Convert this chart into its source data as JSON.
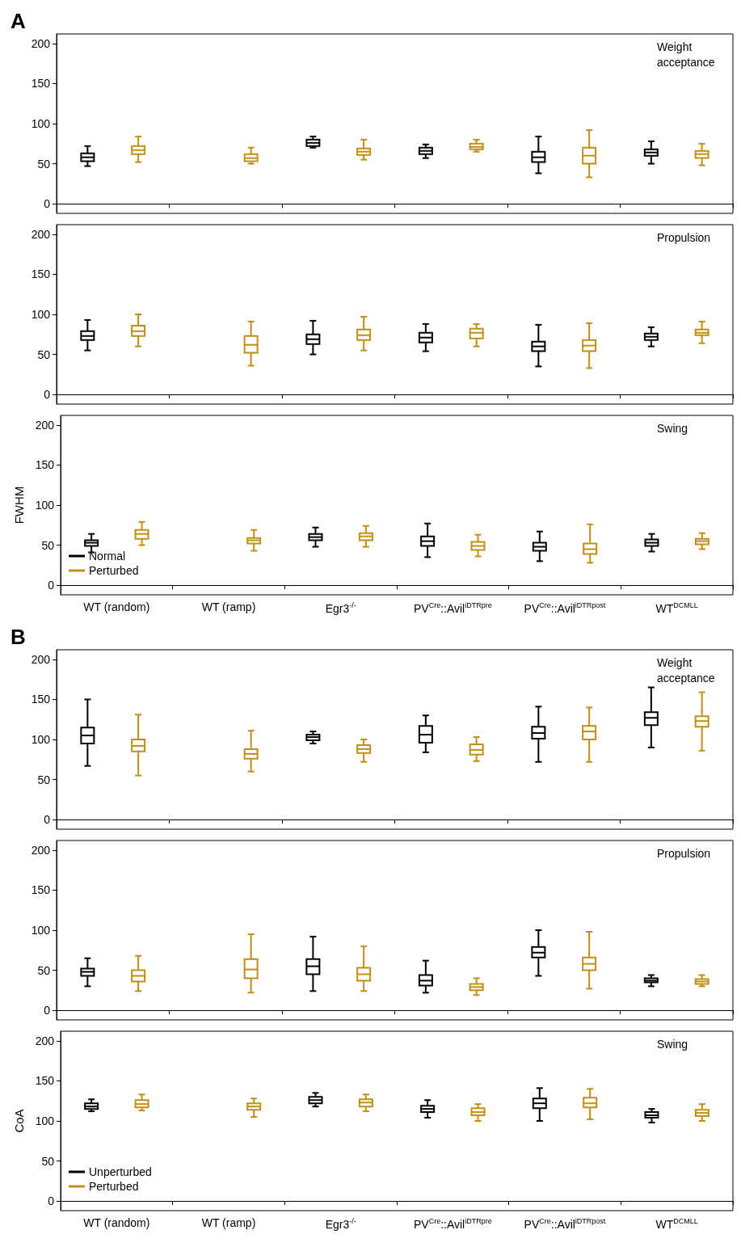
{
  "chart_data": [
    {
      "type": "box",
      "title": "A",
      "annotations": [
        "Weight acceptance"
      ],
      "categories": [
        "WT (random)",
        "WT (ramp)",
        "Egr3$^{-/-}$",
        "PV$^{Cre}$::Avil$^{iDTRpre}$",
        "PV$^{Cre}$::Avil$^{iDTRpost}$",
        "WT$^{DCMLL}$"
      ],
      "ylim": [
        -12,
        212
      ],
      "yticks": [
        0,
        50,
        100,
        150,
        200
      ],
      "tick_labels": "y",
      "series": [
        {
          "color": "#000000",
          "boxes": [
            {
              "low": 47,
              "q1": 53,
              "median": 58,
              "q3": 63,
              "high": 72
            },
            null,
            {
              "low": 70,
              "q1": 72,
              "median": 76,
              "q3": 80,
              "high": 84
            },
            {
              "low": 57,
              "q1": 62,
              "median": 66,
              "q3": 70,
              "high": 74
            },
            {
              "low": 38,
              "q1": 52,
              "median": 58,
              "q3": 65,
              "high": 84
            },
            {
              "low": 50,
              "q1": 60,
              "median": 64,
              "q3": 68,
              "high": 78
            }
          ]
        },
        {
          "color": "#c08f16",
          "boxes": [
            {
              "low": 52,
              "q1": 62,
              "median": 67,
              "q3": 72,
              "high": 84
            },
            {
              "low": 50,
              "q1": 53,
              "median": 57,
              "q3": 62,
              "high": 70
            },
            {
              "low": 55,
              "q1": 61,
              "median": 65,
              "q3": 69,
              "high": 80
            },
            {
              "low": 65,
              "q1": 68,
              "median": 71,
              "q3": 75,
              "high": 80
            },
            {
              "low": 33,
              "q1": 50,
              "median": 60,
              "q3": 70,
              "high": 92
            },
            {
              "low": 48,
              "q1": 57,
              "median": 62,
              "q3": 66,
              "high": 75
            }
          ]
        }
      ]
    },
    {
      "type": "box",
      "annotations": [
        "Propulsion"
      ],
      "categories": [
        "WT (random)",
        "WT (ramp)",
        "Egr3$^{-/-}$",
        "PV$^{Cre}$::Avil$^{iDTRpre}$",
        "PV$^{Cre}$::Avil$^{iDTRpost}$",
        "WT$^{DCMLL}$"
      ],
      "ylim": [
        -12,
        212
      ],
      "yticks": [
        0,
        50,
        100,
        150,
        200
      ],
      "tick_labels": "y",
      "series": [
        {
          "color": "#000000",
          "boxes": [
            {
              "low": 55,
              "q1": 68,
              "median": 73,
              "q3": 79,
              "high": 93
            },
            null,
            {
              "low": 50,
              "q1": 63,
              "median": 69,
              "q3": 75,
              "high": 92
            },
            {
              "low": 54,
              "q1": 65,
              "median": 71,
              "q3": 77,
              "high": 88
            },
            {
              "low": 35,
              "q1": 54,
              "median": 60,
              "q3": 66,
              "high": 87
            },
            {
              "low": 60,
              "q1": 68,
              "median": 72,
              "q3": 76,
              "high": 84
            }
          ]
        },
        {
          "color": "#c08f16",
          "boxes": [
            {
              "low": 60,
              "q1": 73,
              "median": 79,
              "q3": 86,
              "high": 100
            },
            {
              "low": 36,
              "q1": 52,
              "median": 62,
              "q3": 73,
              "high": 91
            },
            {
              "low": 55,
              "q1": 68,
              "median": 74,
              "q3": 81,
              "high": 97
            },
            {
              "low": 60,
              "q1": 70,
              "median": 77,
              "q3": 82,
              "high": 88
            },
            {
              "low": 33,
              "q1": 54,
              "median": 61,
              "q3": 68,
              "high": 89
            },
            {
              "low": 64,
              "q1": 74,
              "median": 77,
              "q3": 81,
              "high": 91
            }
          ]
        }
      ]
    },
    {
      "type": "box",
      "annotations": [
        "Swing"
      ],
      "ylabel": "FWHM",
      "legend": "bottom left",
      "categories": [
        "WT (random)",
        "WT (ramp)",
        "Egr3$^{-/-}$",
        "PV$^{Cre}$::Avil$^{iDTRpre}$",
        "PV$^{Cre}$::Avil$^{iDTRpost}$",
        "WT$^{DCMLL}$"
      ],
      "ylim": [
        -12,
        212
      ],
      "yticks": [
        0,
        50,
        100,
        150,
        200
      ],
      "series": [
        {
          "name": "Normal",
          "color": "#000000",
          "boxes": [
            {
              "low": 41,
              "q1": 49,
              "median": 53,
              "q3": 56,
              "high": 64
            },
            null,
            {
              "low": 48,
              "q1": 56,
              "median": 60,
              "q3": 64,
              "high": 72
            },
            {
              "low": 35,
              "q1": 49,
              "median": 55,
              "q3": 61,
              "high": 77
            },
            {
              "low": 30,
              "q1": 43,
              "median": 48,
              "q3": 53,
              "high": 67
            },
            {
              "low": 42,
              "q1": 49,
              "median": 53,
              "q3": 57,
              "high": 64
            }
          ]
        },
        {
          "name": "Perturbed",
          "color": "#c08f16",
          "boxes": [
            {
              "low": 50,
              "q1": 58,
              "median": 64,
              "q3": 69,
              "high": 79
            },
            {
              "low": 43,
              "q1": 52,
              "median": 56,
              "q3": 59,
              "high": 69
            },
            {
              "low": 48,
              "q1": 56,
              "median": 61,
              "q3": 65,
              "high": 74
            },
            {
              "low": 36,
              "q1": 44,
              "median": 49,
              "q3": 54,
              "high": 63
            },
            {
              "low": 28,
              "q1": 39,
              "median": 45,
              "q3": 52,
              "high": 76
            },
            {
              "low": 45,
              "q1": 51,
              "median": 55,
              "q3": 58,
              "high": 65
            }
          ]
        }
      ]
    },
    {
      "type": "box",
      "title": "B",
      "annotations": [
        "Weight acceptance"
      ],
      "categories": [
        "WT (random)",
        "WT (ramp)",
        "Egr3$^{-/-}$",
        "PV$^{Cre}$::Avil$^{iDTRpre}$",
        "PV$^{Cre}$::Avil$^{iDTRpost}$",
        "WT$^{DCMLL}$"
      ],
      "ylim": [
        -12,
        212
      ],
      "yticks": [
        0,
        50,
        100,
        150,
        200
      ],
      "tick_labels": "y",
      "series": [
        {
          "color": "#000000",
          "boxes": [
            {
              "low": 67,
              "q1": 95,
              "median": 105,
              "q3": 115,
              "high": 150
            },
            null,
            {
              "low": 95,
              "q1": 99,
              "median": 103,
              "q3": 106,
              "high": 110
            },
            {
              "low": 84,
              "q1": 96,
              "median": 106,
              "q3": 117,
              "high": 130
            },
            {
              "low": 72,
              "q1": 101,
              "median": 108,
              "q3": 116,
              "high": 141
            },
            {
              "low": 90,
              "q1": 118,
              "median": 127,
              "q3": 134,
              "high": 165
            }
          ]
        },
        {
          "color": "#c08f16",
          "boxes": [
            {
              "low": 55,
              "q1": 85,
              "median": 92,
              "q3": 100,
              "high": 131
            },
            {
              "low": 60,
              "q1": 76,
              "median": 82,
              "q3": 88,
              "high": 111
            },
            {
              "low": 72,
              "q1": 83,
              "median": 88,
              "q3": 93,
              "high": 100
            },
            {
              "low": 73,
              "q1": 81,
              "median": 87,
              "q3": 94,
              "high": 103
            },
            {
              "low": 72,
              "q1": 100,
              "median": 110,
              "q3": 117,
              "high": 140
            },
            {
              "low": 86,
              "q1": 116,
              "median": 123,
              "q3": 129,
              "high": 159
            }
          ]
        }
      ]
    },
    {
      "type": "box",
      "annotations": [
        "Propulsion"
      ],
      "categories": [
        "WT (random)",
        "WT (ramp)",
        "Egr3$^{-/-}$",
        "PV$^{Cre}$::Avil$^{iDTRpre}$",
        "PV$^{Cre}$::Avil$^{iDTRpost}$",
        "WT$^{DCMLL}$"
      ],
      "ylim": [
        -12,
        212
      ],
      "yticks": [
        0,
        50,
        100,
        150,
        200
      ],
      "tick_labels": "y",
      "series": [
        {
          "color": "#000000",
          "boxes": [
            {
              "low": 30,
              "q1": 43,
              "median": 48,
              "q3": 52,
              "high": 65
            },
            null,
            {
              "low": 24,
              "q1": 45,
              "median": 55,
              "q3": 64,
              "high": 92
            },
            {
              "low": 22,
              "q1": 31,
              "median": 37,
              "q3": 44,
              "high": 62
            },
            {
              "low": 43,
              "q1": 66,
              "median": 72,
              "q3": 79,
              "high": 100
            },
            {
              "low": 30,
              "q1": 35,
              "median": 37,
              "q3": 40,
              "high": 44
            }
          ]
        },
        {
          "color": "#c08f16",
          "boxes": [
            {
              "low": 24,
              "q1": 36,
              "median": 43,
              "q3": 50,
              "high": 68
            },
            {
              "low": 22,
              "q1": 40,
              "median": 51,
              "q3": 64,
              "high": 95
            },
            {
              "low": 24,
              "q1": 37,
              "median": 45,
              "q3": 53,
              "high": 80
            },
            {
              "low": 19,
              "q1": 25,
              "median": 29,
              "q3": 33,
              "high": 40
            },
            {
              "low": 27,
              "q1": 50,
              "median": 58,
              "q3": 66,
              "high": 98
            },
            {
              "low": 30,
              "q1": 33,
              "median": 36,
              "q3": 39,
              "high": 44
            }
          ]
        }
      ]
    },
    {
      "type": "box",
      "annotations": [
        "Swing"
      ],
      "ylabel": "CoA",
      "legend": "bottom left",
      "categories": [
        "WT (random)",
        "WT (ramp)",
        "Egr3$^{-/-}$",
        "PV$^{Cre}$::Avil$^{iDTRpre}$",
        "PV$^{Cre}$::Avil$^{iDTRpost}$",
        "WT$^{DCMLL}$"
      ],
      "ylim": [
        -12,
        212
      ],
      "yticks": [
        0,
        50,
        100,
        150,
        200
      ],
      "series": [
        {
          "name": "Unperturbed",
          "color": "#000000",
          "boxes": [
            {
              "low": 112,
              "q1": 115,
              "median": 118,
              "q3": 122,
              "high": 127
            },
            null,
            {
              "low": 118,
              "q1": 122,
              "median": 126,
              "q3": 130,
              "high": 135
            },
            {
              "low": 104,
              "q1": 111,
              "median": 115,
              "q3": 119,
              "high": 126
            },
            {
              "low": 100,
              "q1": 116,
              "median": 122,
              "q3": 128,
              "high": 141
            },
            {
              "low": 98,
              "q1": 104,
              "median": 107,
              "q3": 111,
              "high": 115
            }
          ]
        },
        {
          "name": "Perturbed",
          "color": "#c08f16",
          "boxes": [
            {
              "low": 113,
              "q1": 117,
              "median": 121,
              "q3": 126,
              "high": 133
            },
            {
              "low": 105,
              "q1": 114,
              "median": 118,
              "q3": 122,
              "high": 128
            },
            {
              "low": 112,
              "q1": 118,
              "median": 123,
              "q3": 127,
              "high": 133
            },
            {
              "low": 100,
              "q1": 107,
              "median": 111,
              "q3": 116,
              "high": 121
            },
            {
              "low": 102,
              "q1": 117,
              "median": 122,
              "q3": 129,
              "high": 140
            },
            {
              "low": 100,
              "q1": 106,
              "median": 110,
              "q3": 114,
              "high": 121
            }
          ]
        }
      ]
    }
  ]
}
